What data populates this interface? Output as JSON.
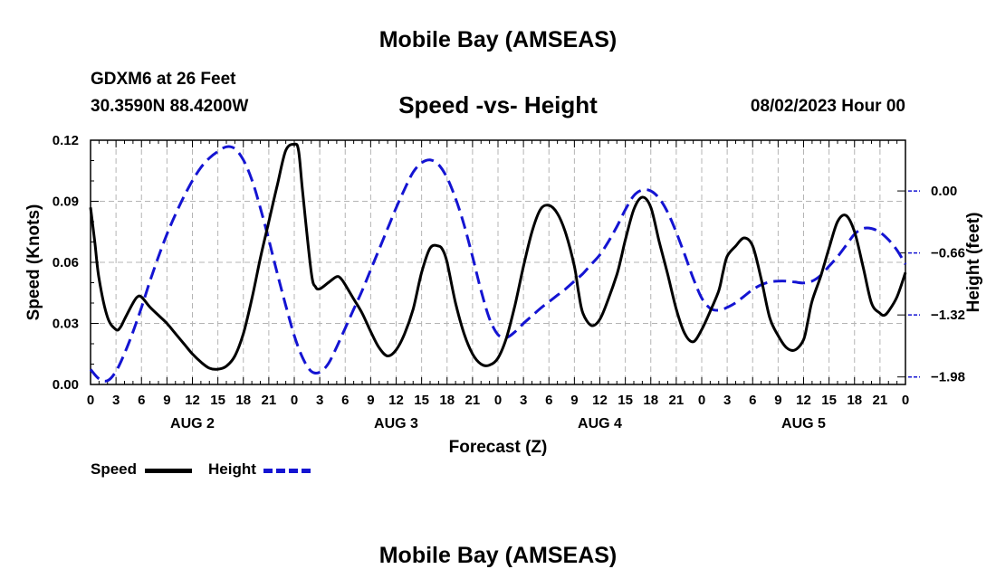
{
  "page": {
    "title": "Mobile Bay (AMSEAS)",
    "bottom_title": "Mobile Bay (AMSEAS)",
    "station": "GDXM6 at 26 Feet",
    "coordinates": "30.3590N  88.4200W",
    "subtitle": "Speed -vs- Height",
    "datetime": "08/02/2023 Hour 00"
  },
  "legend": {
    "speed": "Speed",
    "height": "Height"
  },
  "colors": {
    "speed": "#000000",
    "height": "#1414d2",
    "grid": "#b4b4b4"
  },
  "chart_data": {
    "type": "line",
    "title": "Speed -vs- Height",
    "xlabel": "Forecast (Z)",
    "ylabel": "Speed (Knots)",
    "y2label": "Height (feet)",
    "x_unit": "hours from 08/02/2023 00Z",
    "xlim": [
      0,
      96
    ],
    "ylim": [
      0,
      0.12
    ],
    "y2lim": [
      -2.06,
      0.54
    ],
    "x_ticks": [
      0,
      3,
      6,
      9,
      12,
      15,
      18,
      21,
      24,
      27,
      30,
      33,
      36,
      39,
      42,
      45,
      48,
      51,
      54,
      57,
      60,
      63,
      66,
      69,
      72,
      75,
      78,
      81,
      84,
      87,
      90,
      93,
      96
    ],
    "x_tick_labels": [
      "0",
      "3",
      "6",
      "9",
      "12",
      "15",
      "18",
      "21",
      "0",
      "3",
      "6",
      "9",
      "12",
      "15",
      "18",
      "21",
      "0",
      "3",
      "6",
      "9",
      "12",
      "15",
      "18",
      "21",
      "0",
      "3",
      "6",
      "9",
      "12",
      "15",
      "18",
      "21",
      "0"
    ],
    "day_labels": [
      {
        "x": 12,
        "label": "AUG 2"
      },
      {
        "x": 36,
        "label": "AUG 3"
      },
      {
        "x": 60,
        "label": "AUG 4"
      },
      {
        "x": 84,
        "label": "AUG 5"
      }
    ],
    "y_ticks": [
      0.0,
      0.03,
      0.06,
      0.09,
      0.12
    ],
    "y_tick_labels": [
      "0.00",
      "0.03",
      "0.06",
      "0.09",
      "0.12"
    ],
    "y2_ticks": [
      0.0,
      -0.66,
      -1.32,
      -1.98
    ],
    "y2_tick_labels": [
      "0.00",
      "−0.66",
      "−1.32",
      "−1.98"
    ],
    "series": [
      {
        "name": "Speed",
        "axis": "left",
        "style": "solid",
        "x": [
          0,
          0.5,
          1,
          2,
          3,
          3.5,
          4,
          5,
          5.5,
          6,
          7,
          8,
          9,
          10,
          11,
          12,
          13,
          14,
          15,
          16,
          17,
          18,
          19,
          20,
          21,
          22,
          23,
          24,
          24.5,
          25,
          26,
          26.5,
          27,
          28,
          29,
          29.5,
          30,
          31,
          32,
          33,
          34,
          35,
          36,
          37,
          38,
          39,
          40,
          41,
          41.5,
          42,
          43,
          44,
          45,
          46,
          47,
          48,
          49,
          50,
          51,
          52,
          53,
          54,
          55,
          56,
          57,
          57.5,
          58,
          59,
          60,
          61,
          62,
          62.5,
          63,
          64,
          65,
          66,
          67,
          68,
          69,
          70,
          71,
          72,
          73,
          74,
          74.5,
          75,
          76,
          77,
          78,
          79,
          80,
          81,
          82,
          83,
          84,
          84.5,
          85,
          86,
          87,
          88,
          89,
          90,
          91,
          92,
          93,
          93.5,
          94,
          95,
          96
        ],
        "values": [
          0.087,
          0.07,
          0.052,
          0.033,
          0.027,
          0.028,
          0.032,
          0.04,
          0.043,
          0.043,
          0.038,
          0.034,
          0.03,
          0.025,
          0.02,
          0.015,
          0.011,
          0.008,
          0.0075,
          0.009,
          0.014,
          0.025,
          0.042,
          0.062,
          0.08,
          0.098,
          0.115,
          0.118,
          0.115,
          0.094,
          0.055,
          0.048,
          0.047,
          0.05,
          0.053,
          0.052,
          0.049,
          0.042,
          0.035,
          0.026,
          0.018,
          0.014,
          0.017,
          0.025,
          0.037,
          0.055,
          0.067,
          0.068,
          0.066,
          0.06,
          0.04,
          0.025,
          0.015,
          0.01,
          0.0095,
          0.013,
          0.023,
          0.039,
          0.058,
          0.075,
          0.086,
          0.088,
          0.084,
          0.074,
          0.058,
          0.045,
          0.035,
          0.029,
          0.032,
          0.042,
          0.054,
          0.062,
          0.071,
          0.086,
          0.092,
          0.087,
          0.07,
          0.054,
          0.037,
          0.025,
          0.021,
          0.027,
          0.036,
          0.046,
          0.055,
          0.063,
          0.068,
          0.072,
          0.068,
          0.052,
          0.033,
          0.024,
          0.018,
          0.017,
          0.022,
          0.031,
          0.041,
          0.053,
          0.067,
          0.08,
          0.083,
          0.075,
          0.058,
          0.04,
          0.035,
          0.034,
          0.036,
          0.043,
          0.055
        ]
      },
      {
        "name": "Height",
        "axis": "right",
        "style": "dashed",
        "x": [
          0,
          1,
          2,
          3,
          4,
          5,
          6,
          7,
          8,
          9,
          10,
          11,
          12,
          13,
          14,
          15,
          16,
          17,
          18,
          19,
          20,
          21,
          22,
          23,
          24,
          25,
          26,
          27,
          28,
          29,
          30,
          31,
          32,
          33,
          34,
          35,
          36,
          37,
          38,
          39,
          40,
          41,
          42,
          43,
          44,
          45,
          46,
          47,
          48,
          49,
          50,
          51,
          52,
          53,
          54,
          55,
          56,
          57,
          58,
          59,
          60,
          61,
          62,
          63,
          64,
          65,
          66,
          67,
          68,
          69,
          70,
          71,
          72,
          73,
          74,
          75,
          76,
          77,
          78,
          79,
          80,
          81,
          82,
          83,
          84,
          85,
          86,
          87,
          88,
          89,
          90,
          91,
          92,
          93,
          94,
          95,
          96
        ],
        "values": [
          -1.9,
          -2.0,
          -2.02,
          -1.92,
          -1.73,
          -1.5,
          -1.24,
          -0.96,
          -0.7,
          -0.46,
          -0.25,
          -0.06,
          0.11,
          0.25,
          0.35,
          0.42,
          0.47,
          0.45,
          0.33,
          0.12,
          -0.18,
          -0.52,
          -0.88,
          -1.22,
          -1.54,
          -1.78,
          -1.92,
          -1.93,
          -1.84,
          -1.66,
          -1.46,
          -1.26,
          -1.06,
          -0.84,
          -0.62,
          -0.4,
          -0.18,
          0.02,
          0.2,
          0.3,
          0.33,
          0.28,
          0.14,
          -0.08,
          -0.36,
          -0.7,
          -1.06,
          -1.36,
          -1.53,
          -1.56,
          -1.5,
          -1.41,
          -1.33,
          -1.25,
          -1.18,
          -1.11,
          -1.04,
          -0.96,
          -0.88,
          -0.78,
          -0.68,
          -0.54,
          -0.38,
          -0.2,
          -0.05,
          0.01,
          0.0,
          -0.08,
          -0.23,
          -0.44,
          -0.68,
          -0.93,
          -1.14,
          -1.25,
          -1.27,
          -1.24,
          -1.19,
          -1.12,
          -1.05,
          -1.0,
          -0.97,
          -0.96,
          -0.96,
          -0.97,
          -0.98,
          -0.96,
          -0.9,
          -0.8,
          -0.7,
          -0.58,
          -0.46,
          -0.4,
          -0.4,
          -0.44,
          -0.52,
          -0.63,
          -0.78
        ]
      }
    ]
  }
}
